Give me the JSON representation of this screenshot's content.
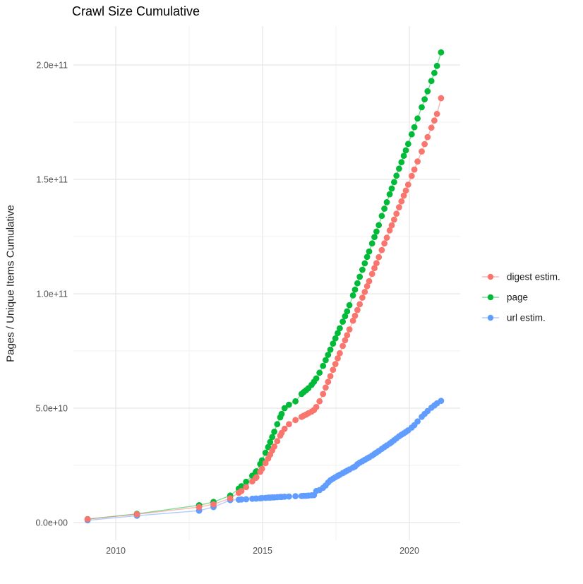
{
  "chart_data": {
    "type": "scatter",
    "title": "Crawl Size Cumulative",
    "ylabel": "Pages / Unique Items Cumulative",
    "xlabel": "",
    "grid": true,
    "legend_position": "right",
    "xlim": [
      2008.45,
      2021.75
    ],
    "ylim": [
      0,
      216000000000.0
    ],
    "x_major_ticks": [
      2010,
      2015,
      2020
    ],
    "x_tick_labels": [
      "2010",
      "2015",
      "2020"
    ],
    "x_minor_ticks": [
      2012.5,
      2017.5
    ],
    "y_major_ticks_e9": [
      0,
      50,
      100,
      150,
      200
    ],
    "y_tick_labels": [
      "0.0e+00",
      "5.0e+10",
      "1.0e+11",
      "1.5e+11",
      "2.0e+11"
    ],
    "y_minor_ticks_e9": [
      25,
      75,
      125,
      175
    ],
    "x_years": [
      2009.04,
      2010.72,
      2012.84,
      2013.33,
      2013.9,
      2014.19,
      2014.28,
      2014.44,
      2014.65,
      2014.77,
      2014.79,
      2014.92,
      2014.98,
      2015.1,
      2015.19,
      2015.26,
      2015.33,
      2015.4,
      2015.5,
      2015.6,
      2015.65,
      2015.75,
      2015.9,
      2016.12,
      2016.33,
      2016.4,
      2016.48,
      2016.56,
      2016.67,
      2016.75,
      2016.83,
      2016.94,
      2017.06,
      2017.15,
      2017.23,
      2017.31,
      2017.4,
      2017.48,
      2017.56,
      2017.63,
      2017.73,
      2017.81,
      2017.88,
      2017.96,
      2018.08,
      2018.15,
      2018.23,
      2018.31,
      2018.4,
      2018.48,
      2018.56,
      2018.63,
      2018.73,
      2018.81,
      2018.88,
      2018.96,
      2019.06,
      2019.15,
      2019.23,
      2019.33,
      2019.4,
      2019.48,
      2019.56,
      2019.65,
      2019.73,
      2019.81,
      2019.88,
      2019.96,
      2020.08,
      2020.17,
      2020.28,
      2020.42,
      2020.52,
      2020.62,
      2020.75,
      2020.85,
      2020.94,
      2021.08
    ],
    "series": [
      {
        "name": "digest estim.",
        "color": "#F8766D",
        "values_e9": [
          1.5,
          3.6,
          6.8,
          8.0,
          10.6,
          13.0,
          13.8,
          15.5,
          18.0,
          19.5,
          19.8,
          22.2,
          23.5,
          26.0,
          28.0,
          29.7,
          31.5,
          33.2,
          35.6,
          38.0,
          39.2,
          41.0,
          43.0,
          44.8,
          46.2,
          46.7,
          47.2,
          47.8,
          48.5,
          49.2,
          50.5,
          53.0,
          56.2,
          59.0,
          61.5,
          64.0,
          66.8,
          69.3,
          71.8,
          74.0,
          77.2,
          79.7,
          81.9,
          84.4,
          88.2,
          90.4,
          92.9,
          95.4,
          98.3,
          100.8,
          103.3,
          105.5,
          108.7,
          111.2,
          113.4,
          116.0,
          119.1,
          122.0,
          124.5,
          127.7,
          129.9,
          132.4,
          135.0,
          137.8,
          140.4,
          142.9,
          145.1,
          147.7,
          151.5,
          154.3,
          157.8,
          162.2,
          165.4,
          168.5,
          172.6,
          175.7,
          178.6,
          185.5
        ]
      },
      {
        "name": "page",
        "color": "#00BA38",
        "values_e9": [
          1.5,
          3.8,
          7.6,
          9.0,
          11.8,
          14.8,
          15.9,
          17.8,
          20.5,
          22.1,
          22.4,
          25.6,
          27.2,
          30.5,
          33.0,
          35.2,
          37.4,
          39.7,
          43.0,
          46.0,
          47.5,
          50.0,
          51.5,
          53.0,
          56.2,
          57.0,
          57.8,
          58.7,
          60.2,
          61.5,
          63.0,
          65.5,
          68.5,
          71.0,
          73.3,
          75.6,
          78.2,
          80.5,
          82.8,
          84.9,
          87.8,
          90.2,
          92.3,
          95.0,
          99.3,
          101.8,
          104.6,
          107.4,
          110.5,
          113.3,
          116.1,
          118.5,
          122.0,
          124.8,
          127.2,
          130.0,
          134.0,
          137.2,
          140.0,
          143.5,
          146.0,
          148.8,
          151.6,
          154.7,
          157.5,
          160.3,
          162.7,
          165.5,
          169.7,
          172.8,
          176.6,
          181.5,
          185.0,
          188.5,
          193.0,
          196.5,
          199.6,
          205.5
        ]
      },
      {
        "name": "url estim.",
        "color": "#619CFF",
        "values_e9": [
          1.0,
          3.0,
          5.2,
          6.8,
          9.8,
          10.0,
          10.1,
          10.2,
          10.4,
          10.5,
          10.5,
          10.6,
          10.7,
          10.8,
          10.9,
          10.9,
          11.0,
          11.0,
          11.1,
          11.2,
          11.2,
          11.3,
          11.4,
          11.5,
          11.6,
          11.7,
          11.7,
          11.8,
          11.9,
          12.0,
          13.8,
          14.2,
          15.2,
          16.2,
          17.5,
          18.5,
          19.2,
          19.8,
          20.4,
          20.9,
          21.6,
          22.2,
          22.7,
          23.2,
          24.0,
          24.5,
          25.5,
          26.2,
          26.8,
          27.4,
          28.0,
          28.5,
          29.3,
          30.0,
          30.6,
          31.3,
          32.2,
          33.0,
          33.7,
          34.5,
          35.2,
          36.0,
          36.8,
          37.7,
          38.4,
          39.0,
          39.6,
          40.3,
          41.5,
          42.6,
          44.2,
          46.2,
          47.5,
          48.7,
          50.2,
          51.2,
          52.1,
          53.2
        ]
      }
    ],
    "colors": {
      "digest": "#F8766D",
      "page": "#00BA38",
      "url": "#619CFF",
      "grid_major": "#e6e6e6",
      "grid_minor": "#f1f1f1",
      "axis_text": "#4d4d4d"
    }
  }
}
